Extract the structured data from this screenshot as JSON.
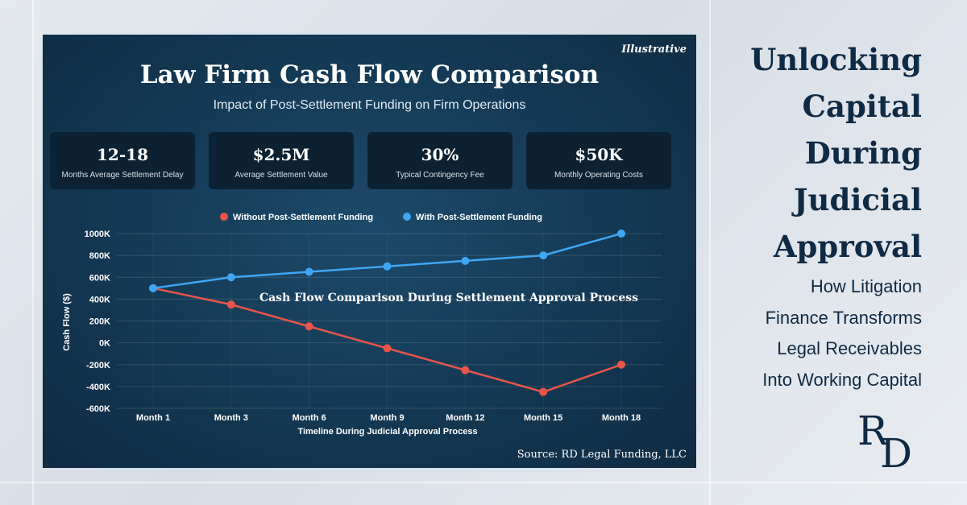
{
  "panel": {
    "illustrative_tag": "Illustrative",
    "title": "Law Firm Cash Flow Comparison",
    "subtitle": "Impact of Post-Settlement Funding on Firm Operations",
    "source": "Source: RD Legal Funding, LLC"
  },
  "stats": [
    {
      "value": "12-18",
      "label": "Months Average Settlement Delay"
    },
    {
      "value": "$2.5M",
      "label": "Average Settlement Value"
    },
    {
      "value": "30%",
      "label": "Typical Contingency Fee"
    },
    {
      "value": "$50K",
      "label": "Monthly Operating Costs"
    }
  ],
  "sidebar": {
    "heading_lines": [
      "Unlocking",
      "Capital",
      "During",
      "Judicial",
      "Approval"
    ],
    "sub_lines": [
      "How Litigation",
      "Finance Transforms",
      "Legal Receivables",
      "Into Working Capital"
    ],
    "logo_text": "RD"
  },
  "colors": {
    "without_series": "#e8554a",
    "with_series": "#3ea7f5",
    "heading": "#0f2a44"
  },
  "chart_data": {
    "type": "line",
    "title": "Cash Flow Comparison During Settlement Approval Process",
    "xlabel": "Timeline During Judicial Approval Process",
    "ylabel": "Cash Flow ($)",
    "categories": [
      "Month 1",
      "Month 3",
      "Month 6",
      "Month 9",
      "Month 12",
      "Month 15",
      "Month 18"
    ],
    "series": [
      {
        "name": "Without Post-Settlement Funding",
        "values": [
          500000,
          350000,
          150000,
          -50000,
          -250000,
          -450000,
          -200000
        ]
      },
      {
        "name": "With Post-Settlement Funding",
        "values": [
          500000,
          600000,
          650000,
          700000,
          750000,
          800000,
          1000000
        ]
      }
    ],
    "ylim": [
      -600000,
      1000000
    ],
    "yticks": [
      1000000,
      800000,
      600000,
      400000,
      200000,
      0,
      -200000,
      -400000,
      -600000
    ],
    "ytick_labels": [
      "1000K",
      "800K",
      "600K",
      "400K",
      "200K",
      "0K",
      "-200K",
      "-400K",
      "-600K"
    ],
    "legend": "top-center",
    "grid": true
  }
}
